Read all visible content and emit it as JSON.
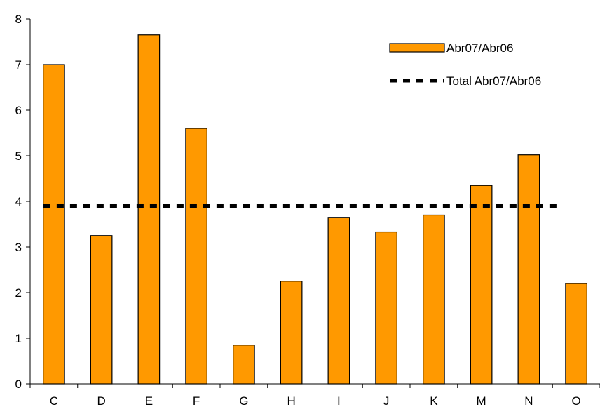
{
  "chart_data": {
    "type": "bar",
    "categories": [
      "C",
      "D",
      "E",
      "F",
      "G",
      "H",
      "I",
      "J",
      "K",
      "M",
      "N",
      "O"
    ],
    "series": [
      {
        "name": "Abr07/Abr06",
        "values": [
          7.0,
          3.25,
          7.65,
          5.6,
          0.85,
          2.25,
          3.65,
          3.33,
          3.7,
          4.35,
          5.02,
          2.2
        ],
        "color": "#FF9900"
      }
    ],
    "reference_line": {
      "name": "Total Abr07/Abr06",
      "value": 3.9,
      "style": "dashed",
      "color": "#000000"
    },
    "title": "",
    "xlabel": "",
    "ylabel": "",
    "ylim": [
      0,
      8
    ],
    "yticks": [
      0,
      1,
      2,
      3,
      4,
      5,
      6,
      7,
      8
    ],
    "grid": false,
    "legend_position": "top-right"
  }
}
